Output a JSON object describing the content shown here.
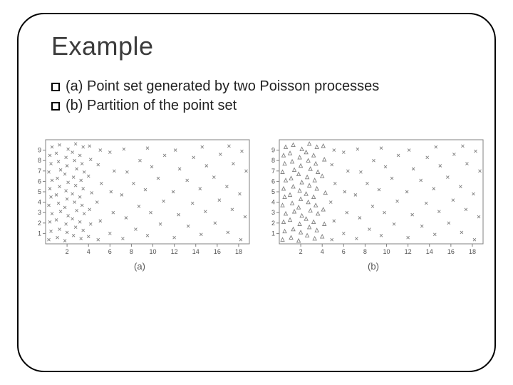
{
  "title": "Example",
  "bullets": [
    "(a) Point set generated by two Poisson processes",
    "(b) Partition of the point set"
  ],
  "chart_a": {
    "type": "scatter",
    "caption": "(a)",
    "xlim": [
      0,
      19
    ],
    "ylim": [
      0,
      10
    ],
    "xticks": [
      2,
      4,
      6,
      8,
      10,
      12,
      14,
      16,
      18
    ],
    "yticks": [
      1,
      2,
      3,
      4,
      5,
      6,
      7,
      8,
      9
    ],
    "axis_color": "#808080",
    "tick_label_color": "#505050",
    "tick_fontsize": 9,
    "background_color": "#ffffff",
    "marker": "x",
    "marker_size": 4,
    "marker_color": "#808080",
    "marker_stroke": 0.9,
    "points": [
      [
        0.3,
        0.4
      ],
      [
        0.5,
        1.2
      ],
      [
        0.4,
        2.1
      ],
      [
        0.6,
        2.9
      ],
      [
        0.3,
        3.7
      ],
      [
        0.5,
        4.5
      ],
      [
        0.4,
        5.3
      ],
      [
        0.6,
        6.1
      ],
      [
        0.3,
        6.9
      ],
      [
        0.5,
        7.7
      ],
      [
        0.4,
        8.5
      ],
      [
        0.6,
        9.3
      ],
      [
        1.1,
        0.6
      ],
      [
        1.3,
        1.4
      ],
      [
        1.0,
        2.3
      ],
      [
        1.4,
        3.1
      ],
      [
        1.2,
        3.9
      ],
      [
        1.0,
        4.7
      ],
      [
        1.3,
        5.5
      ],
      [
        1.1,
        6.3
      ],
      [
        1.4,
        7.1
      ],
      [
        1.2,
        7.9
      ],
      [
        1.0,
        8.7
      ],
      [
        1.3,
        9.5
      ],
      [
        1.8,
        0.3
      ],
      [
        2.0,
        1.1
      ],
      [
        1.9,
        1.9
      ],
      [
        2.1,
        2.7
      ],
      [
        1.8,
        3.5
      ],
      [
        2.0,
        4.3
      ],
      [
        1.9,
        5.1
      ],
      [
        2.1,
        5.9
      ],
      [
        1.8,
        6.7
      ],
      [
        2.0,
        7.5
      ],
      [
        1.9,
        8.3
      ],
      [
        2.1,
        9.1
      ],
      [
        2.6,
        0.8
      ],
      [
        2.8,
        1.6
      ],
      [
        2.5,
        2.4
      ],
      [
        2.9,
        3.2
      ],
      [
        2.7,
        4.0
      ],
      [
        2.5,
        4.8
      ],
      [
        2.8,
        5.6
      ],
      [
        2.6,
        6.4
      ],
      [
        2.9,
        7.2
      ],
      [
        2.7,
        8.0
      ],
      [
        2.5,
        8.8
      ],
      [
        2.8,
        9.6
      ],
      [
        3.3,
        0.5
      ],
      [
        3.5,
        1.3
      ],
      [
        3.2,
        2.1
      ],
      [
        3.6,
        2.9
      ],
      [
        3.4,
        3.7
      ],
      [
        3.2,
        4.5
      ],
      [
        3.5,
        5.3
      ],
      [
        3.3,
        6.1
      ],
      [
        3.6,
        6.9
      ],
      [
        3.4,
        7.7
      ],
      [
        3.2,
        8.5
      ],
      [
        3.5,
        9.3
      ],
      [
        4.0,
        0.7
      ],
      [
        4.2,
        1.9
      ],
      [
        4.1,
        3.3
      ],
      [
        4.3,
        4.9
      ],
      [
        4.0,
        6.5
      ],
      [
        4.2,
        8.1
      ],
      [
        4.1,
        9.4
      ],
      [
        4.9,
        0.4
      ],
      [
        5.1,
        2.2
      ],
      [
        4.8,
        4.0
      ],
      [
        5.2,
        5.8
      ],
      [
        4.9,
        7.6
      ],
      [
        5.1,
        9.0
      ],
      [
        6.0,
        1.0
      ],
      [
        6.3,
        3.0
      ],
      [
        6.1,
        5.0
      ],
      [
        6.4,
        7.0
      ],
      [
        6.0,
        8.8
      ],
      [
        7.2,
        0.5
      ],
      [
        7.5,
        2.5
      ],
      [
        7.1,
        4.7
      ],
      [
        7.6,
        6.9
      ],
      [
        7.3,
        9.1
      ],
      [
        8.4,
        1.4
      ],
      [
        8.7,
        3.6
      ],
      [
        8.2,
        5.8
      ],
      [
        8.8,
        8.0
      ],
      [
        9.5,
        0.8
      ],
      [
        9.8,
        3.0
      ],
      [
        9.3,
        5.2
      ],
      [
        9.9,
        7.4
      ],
      [
        9.5,
        9.2
      ],
      [
        10.7,
        1.9
      ],
      [
        11.0,
        4.1
      ],
      [
        10.5,
        6.3
      ],
      [
        11.1,
        8.5
      ],
      [
        12.0,
        0.6
      ],
      [
        12.4,
        2.8
      ],
      [
        11.9,
        5.0
      ],
      [
        12.5,
        7.2
      ],
      [
        12.1,
        9.0
      ],
      [
        13.3,
        1.7
      ],
      [
        13.7,
        3.9
      ],
      [
        13.2,
        6.1
      ],
      [
        13.8,
        8.3
      ],
      [
        14.5,
        0.9
      ],
      [
        14.9,
        3.1
      ],
      [
        14.4,
        5.3
      ],
      [
        15.0,
        7.5
      ],
      [
        14.6,
        9.3
      ],
      [
        15.8,
        2.0
      ],
      [
        16.2,
        4.2
      ],
      [
        15.7,
        6.4
      ],
      [
        16.3,
        8.6
      ],
      [
        17.0,
        1.1
      ],
      [
        17.4,
        3.3
      ],
      [
        16.9,
        5.5
      ],
      [
        17.5,
        7.7
      ],
      [
        17.1,
        9.4
      ],
      [
        18.2,
        0.4
      ],
      [
        18.6,
        2.6
      ],
      [
        18.1,
        4.8
      ],
      [
        18.7,
        7.0
      ],
      [
        18.3,
        8.9
      ]
    ]
  },
  "chart_b": {
    "type": "scatter",
    "caption": "(b)",
    "xlim": [
      0,
      19
    ],
    "ylim": [
      0,
      10
    ],
    "xticks": [
      2,
      4,
      6,
      8,
      10,
      12,
      14,
      16,
      18
    ],
    "yticks": [
      1,
      2,
      3,
      4,
      5,
      6,
      7,
      8,
      9
    ],
    "axis_color": "#808080",
    "tick_label_color": "#505050",
    "tick_fontsize": 9,
    "background_color": "#ffffff",
    "series": [
      {
        "marker": "triangle",
        "marker_size": 5,
        "marker_color": "#808080",
        "marker_stroke": 0.9,
        "points": [
          [
            0.3,
            0.4
          ],
          [
            0.5,
            1.2
          ],
          [
            0.4,
            2.1
          ],
          [
            0.6,
            2.9
          ],
          [
            0.3,
            3.7
          ],
          [
            0.5,
            4.5
          ],
          [
            0.4,
            5.3
          ],
          [
            0.6,
            6.1
          ],
          [
            0.3,
            6.9
          ],
          [
            0.5,
            7.7
          ],
          [
            0.4,
            8.5
          ],
          [
            0.6,
            9.3
          ],
          [
            1.1,
            0.6
          ],
          [
            1.3,
            1.4
          ],
          [
            1.0,
            2.3
          ],
          [
            1.4,
            3.1
          ],
          [
            1.2,
            3.9
          ],
          [
            1.0,
            4.7
          ],
          [
            1.3,
            5.5
          ],
          [
            1.1,
            6.3
          ],
          [
            1.4,
            7.1
          ],
          [
            1.2,
            7.9
          ],
          [
            1.0,
            8.7
          ],
          [
            1.3,
            9.5
          ],
          [
            1.8,
            0.3
          ],
          [
            2.0,
            1.1
          ],
          [
            1.9,
            1.9
          ],
          [
            2.1,
            2.7
          ],
          [
            1.8,
            3.5
          ],
          [
            2.0,
            4.3
          ],
          [
            1.9,
            5.1
          ],
          [
            2.1,
            5.9
          ],
          [
            1.8,
            6.7
          ],
          [
            2.0,
            7.5
          ],
          [
            1.9,
            8.3
          ],
          [
            2.1,
            9.1
          ],
          [
            2.6,
            0.8
          ],
          [
            2.8,
            1.6
          ],
          [
            2.5,
            2.4
          ],
          [
            2.9,
            3.2
          ],
          [
            2.7,
            4.0
          ],
          [
            2.5,
            4.8
          ],
          [
            2.8,
            5.6
          ],
          [
            2.6,
            6.4
          ],
          [
            2.9,
            7.2
          ],
          [
            2.7,
            8.0
          ],
          [
            2.5,
            8.8
          ],
          [
            2.8,
            9.6
          ],
          [
            3.3,
            0.5
          ],
          [
            3.5,
            1.3
          ],
          [
            3.2,
            2.1
          ],
          [
            3.6,
            2.9
          ],
          [
            3.4,
            3.7
          ],
          [
            3.2,
            4.5
          ],
          [
            3.5,
            5.3
          ],
          [
            3.3,
            6.1
          ],
          [
            3.6,
            6.9
          ],
          [
            3.4,
            7.7
          ],
          [
            3.2,
            8.5
          ],
          [
            3.5,
            9.3
          ],
          [
            4.0,
            0.7
          ],
          [
            4.2,
            1.9
          ],
          [
            4.1,
            3.3
          ],
          [
            4.3,
            4.9
          ],
          [
            4.0,
            6.5
          ],
          [
            4.2,
            8.1
          ],
          [
            4.1,
            9.4
          ]
        ]
      },
      {
        "marker": "x",
        "marker_size": 4,
        "marker_color": "#808080",
        "marker_stroke": 0.9,
        "points": [
          [
            4.9,
            0.4
          ],
          [
            5.1,
            2.2
          ],
          [
            4.8,
            4.0
          ],
          [
            5.2,
            5.8
          ],
          [
            4.9,
            7.6
          ],
          [
            5.1,
            9.0
          ],
          [
            6.0,
            1.0
          ],
          [
            6.3,
            3.0
          ],
          [
            6.1,
            5.0
          ],
          [
            6.4,
            7.0
          ],
          [
            6.0,
            8.8
          ],
          [
            7.2,
            0.5
          ],
          [
            7.5,
            2.5
          ],
          [
            7.1,
            4.7
          ],
          [
            7.6,
            6.9
          ],
          [
            7.3,
            9.1
          ],
          [
            8.4,
            1.4
          ],
          [
            8.7,
            3.6
          ],
          [
            8.2,
            5.8
          ],
          [
            8.8,
            8.0
          ],
          [
            9.5,
            0.8
          ],
          [
            9.8,
            3.0
          ],
          [
            9.3,
            5.2
          ],
          [
            9.9,
            7.4
          ],
          [
            9.5,
            9.2
          ],
          [
            10.7,
            1.9
          ],
          [
            11.0,
            4.1
          ],
          [
            10.5,
            6.3
          ],
          [
            11.1,
            8.5
          ],
          [
            12.0,
            0.6
          ],
          [
            12.4,
            2.8
          ],
          [
            11.9,
            5.0
          ],
          [
            12.5,
            7.2
          ],
          [
            12.1,
            9.0
          ],
          [
            13.3,
            1.7
          ],
          [
            13.7,
            3.9
          ],
          [
            13.2,
            6.1
          ],
          [
            13.8,
            8.3
          ],
          [
            14.5,
            0.9
          ],
          [
            14.9,
            3.1
          ],
          [
            14.4,
            5.3
          ],
          [
            15.0,
            7.5
          ],
          [
            14.6,
            9.3
          ],
          [
            15.8,
            2.0
          ],
          [
            16.2,
            4.2
          ],
          [
            15.7,
            6.4
          ],
          [
            16.3,
            8.6
          ],
          [
            17.0,
            1.1
          ],
          [
            17.4,
            3.3
          ],
          [
            16.9,
            5.5
          ],
          [
            17.5,
            7.7
          ],
          [
            17.1,
            9.4
          ],
          [
            18.2,
            0.4
          ],
          [
            18.6,
            2.6
          ],
          [
            18.1,
            4.8
          ],
          [
            18.7,
            7.0
          ],
          [
            18.3,
            8.9
          ]
        ]
      }
    ]
  }
}
